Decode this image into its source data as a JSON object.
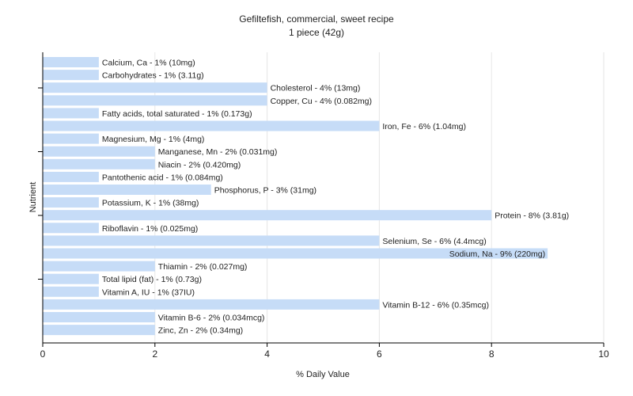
{
  "chart_data": {
    "type": "bar",
    "orientation": "horizontal",
    "title": "Gefiltefish, commercial, sweet recipe",
    "subtitle": "1 piece (42g)",
    "xlabel": "% Daily Value",
    "ylabel": "Nutrient",
    "xlim": [
      0,
      10
    ],
    "xticks": [
      0,
      2,
      4,
      6,
      8,
      10
    ],
    "grid": true,
    "bar_color": "#c6dcf7",
    "categories": [
      "Calcium, Ca",
      "Carbohydrates",
      "Cholesterol",
      "Copper, Cu",
      "Fatty acids, total saturated",
      "Iron, Fe",
      "Magnesium, Mg",
      "Manganese, Mn",
      "Niacin",
      "Pantothenic acid",
      "Phosphorus, P",
      "Potassium, K",
      "Protein",
      "Riboflavin",
      "Selenium, Se",
      "Sodium, Na",
      "Thiamin",
      "Total lipid (fat)",
      "Vitamin A, IU",
      "Vitamin B-12",
      "Vitamin B-6",
      "Zinc, Zn"
    ],
    "values": [
      1,
      1,
      4,
      4,
      1,
      6,
      1,
      2,
      2,
      1,
      3,
      1,
      8,
      1,
      6,
      9,
      2,
      1,
      1,
      6,
      2,
      2
    ],
    "labels": [
      "Calcium, Ca - 1% (10mg)",
      "Carbohydrates - 1% (3.11g)",
      "Cholesterol - 4% (13mg)",
      "Copper, Cu - 4% (0.082mg)",
      "Fatty acids, total saturated - 1% (0.173g)",
      "Iron, Fe - 6% (1.04mg)",
      "Magnesium, Mg - 1% (4mg)",
      "Manganese, Mn - 2% (0.031mg)",
      "Niacin - 2% (0.420mg)",
      "Pantothenic acid - 1% (0.084mg)",
      "Phosphorus, P - 3% (31mg)",
      "Potassium, K - 1% (38mg)",
      "Protein - 8% (3.81g)",
      "Riboflavin - 1% (0.025mg)",
      "Selenium, Se - 6% (4.4mcg)",
      "Sodium, Na - 9% (220mg)",
      "Thiamin - 2% (0.027mg)",
      "Total lipid (fat) - 1% (0.73g)",
      "Vitamin A, IU - 1% (37IU)",
      "Vitamin B-12 - 6% (0.35mcg)",
      "Vitamin B-6 - 2% (0.034mcg)",
      "Zinc, Zn - 2% (0.34mg)"
    ]
  }
}
